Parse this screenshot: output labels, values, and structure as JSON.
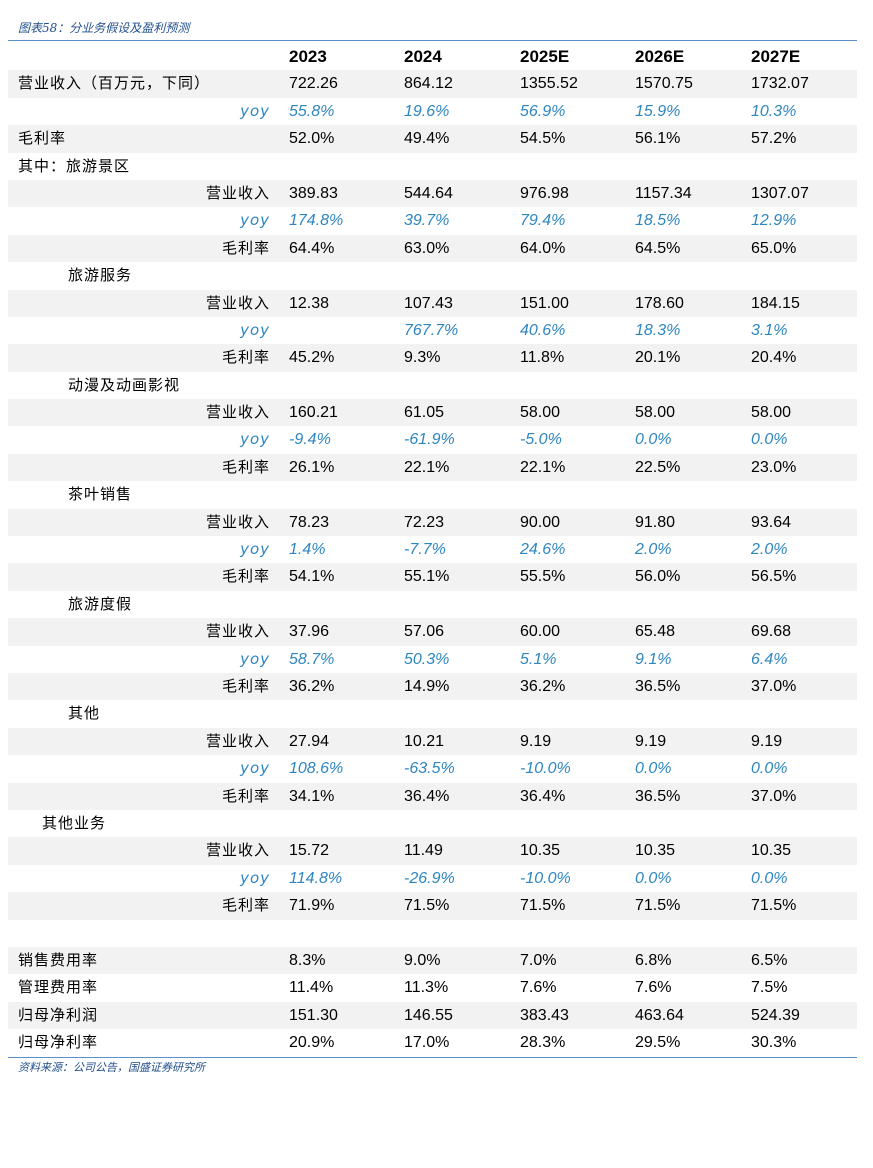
{
  "caption": "图表58：分业务假设及盈利预测",
  "source": "资料来源：公司公告，国盛证券研究所",
  "columns": [
    "2023",
    "2024",
    "2025E",
    "2026E",
    "2027E"
  ],
  "rows": [
    {
      "label": "营业收入（百万元，下同）",
      "indent": "l0",
      "shaded": true,
      "values": [
        "722.26",
        "864.12",
        "1355.52",
        "1570.75",
        "1732.07"
      ]
    },
    {
      "label": "yoy",
      "indent": "r",
      "yoy": true,
      "values": [
        "55.8%",
        "19.6%",
        "56.9%",
        "15.9%",
        "10.3%"
      ]
    },
    {
      "label": "毛利率",
      "indent": "l0",
      "shaded": true,
      "values": [
        "52.0%",
        "49.4%",
        "54.5%",
        "56.1%",
        "57.2%"
      ]
    },
    {
      "label": "其中：旅游景区",
      "indent": "l0",
      "values": [
        "",
        "",
        "",
        "",
        ""
      ]
    },
    {
      "label": "营业收入",
      "indent": "r",
      "shaded": true,
      "values": [
        "389.83",
        "544.64",
        "976.98",
        "1157.34",
        "1307.07"
      ]
    },
    {
      "label": "yoy",
      "indent": "r",
      "yoy": true,
      "values": [
        "174.8%",
        "39.7%",
        "79.4%",
        "18.5%",
        "12.9%"
      ]
    },
    {
      "label": "毛利率",
      "indent": "r",
      "shaded": true,
      "values": [
        "64.4%",
        "63.0%",
        "64.0%",
        "64.5%",
        "65.0%"
      ]
    },
    {
      "label": "旅游服务",
      "indent": "l1",
      "values": [
        "",
        "",
        "",
        "",
        ""
      ]
    },
    {
      "label": "营业收入",
      "indent": "r",
      "shaded": true,
      "values": [
        "12.38",
        "107.43",
        "151.00",
        "178.60",
        "184.15"
      ]
    },
    {
      "label": "yoy",
      "indent": "r",
      "yoy": true,
      "values": [
        "",
        "767.7%",
        "40.6%",
        "18.3%",
        "3.1%"
      ]
    },
    {
      "label": "毛利率",
      "indent": "r",
      "shaded": true,
      "values": [
        "45.2%",
        "9.3%",
        "11.8%",
        "20.1%",
        "20.4%"
      ]
    },
    {
      "label": "动漫及动画影视",
      "indent": "l1",
      "values": [
        "",
        "",
        "",
        "",
        ""
      ]
    },
    {
      "label": "营业收入",
      "indent": "r",
      "shaded": true,
      "values": [
        "160.21",
        "61.05",
        "58.00",
        "58.00",
        "58.00"
      ]
    },
    {
      "label": "yoy",
      "indent": "r",
      "yoy": true,
      "values": [
        "-9.4%",
        "-61.9%",
        "-5.0%",
        "0.0%",
        "0.0%"
      ]
    },
    {
      "label": "毛利率",
      "indent": "r",
      "shaded": true,
      "values": [
        "26.1%",
        "22.1%",
        "22.1%",
        "22.5%",
        "23.0%"
      ]
    },
    {
      "label": "茶叶销售",
      "indent": "l1",
      "values": [
        "",
        "",
        "",
        "",
        ""
      ]
    },
    {
      "label": "营业收入",
      "indent": "r",
      "shaded": true,
      "values": [
        "78.23",
        "72.23",
        "90.00",
        "91.80",
        "93.64"
      ]
    },
    {
      "label": "yoy",
      "indent": "r",
      "yoy": true,
      "values": [
        "1.4%",
        "-7.7%",
        "24.6%",
        "2.0%",
        "2.0%"
      ]
    },
    {
      "label": "毛利率",
      "indent": "r",
      "shaded": true,
      "values": [
        "54.1%",
        "55.1%",
        "55.5%",
        "56.0%",
        "56.5%"
      ]
    },
    {
      "label": "旅游度假",
      "indent": "l1",
      "values": [
        "",
        "",
        "",
        "",
        ""
      ]
    },
    {
      "label": "营业收入",
      "indent": "r",
      "shaded": true,
      "values": [
        "37.96",
        "57.06",
        "60.00",
        "65.48",
        "69.68"
      ]
    },
    {
      "label": "yoy",
      "indent": "r",
      "yoy": true,
      "values": [
        "58.7%",
        "50.3%",
        "5.1%",
        "9.1%",
        "6.4%"
      ]
    },
    {
      "label": "毛利率",
      "indent": "r",
      "shaded": true,
      "values": [
        "36.2%",
        "14.9%",
        "36.2%",
        "36.5%",
        "37.0%"
      ]
    },
    {
      "label": "其他",
      "indent": "l1",
      "values": [
        "",
        "",
        "",
        "",
        ""
      ]
    },
    {
      "label": "营业收入",
      "indent": "r",
      "shaded": true,
      "values": [
        "27.94",
        "10.21",
        "9.19",
        "9.19",
        "9.19"
      ]
    },
    {
      "label": "yoy",
      "indent": "r",
      "yoy": true,
      "values": [
        "108.6%",
        "-63.5%",
        "-10.0%",
        "0.0%",
        "0.0%"
      ]
    },
    {
      "label": "毛利率",
      "indent": "r",
      "shaded": true,
      "values": [
        "34.1%",
        "36.4%",
        "36.4%",
        "36.5%",
        "37.0%"
      ]
    },
    {
      "label": "其他业务",
      "indent": "l1b",
      "values": [
        "",
        "",
        "",
        "",
        ""
      ]
    },
    {
      "label": "营业收入",
      "indent": "r",
      "shaded": true,
      "values": [
        "15.72",
        "11.49",
        "10.35",
        "10.35",
        "10.35"
      ]
    },
    {
      "label": "yoy",
      "indent": "r",
      "yoy": true,
      "values": [
        "114.8%",
        "-26.9%",
        "-10.0%",
        "0.0%",
        "0.0%"
      ]
    },
    {
      "label": "毛利率",
      "indent": "r",
      "shaded": true,
      "values": [
        "71.9%",
        "71.5%",
        "71.5%",
        "71.5%",
        "71.5%"
      ]
    },
    {
      "spacer": true
    },
    {
      "label": "销售费用率",
      "indent": "l0",
      "shaded": true,
      "values": [
        "8.3%",
        "9.0%",
        "7.0%",
        "6.8%",
        "6.5%"
      ]
    },
    {
      "label": "管理费用率",
      "indent": "l0",
      "values": [
        "11.4%",
        "11.3%",
        "7.6%",
        "7.6%",
        "7.5%"
      ]
    },
    {
      "label": "归母净利润",
      "indent": "l0",
      "shaded": true,
      "values": [
        "151.30",
        "146.55",
        "383.43",
        "463.64",
        "524.39"
      ]
    },
    {
      "label": "归母净利率",
      "indent": "l0",
      "values": [
        "20.9%",
        "17.0%",
        "28.3%",
        "29.5%",
        "30.3%"
      ]
    }
  ]
}
